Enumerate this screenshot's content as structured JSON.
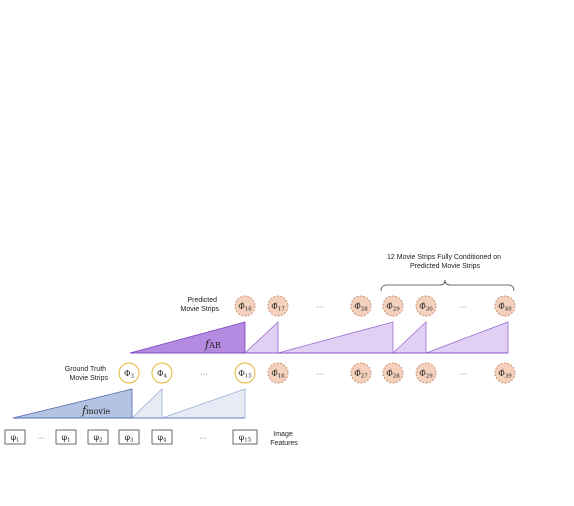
{
  "labels": {
    "predicted": [
      "Predicted",
      "Movie Strips"
    ],
    "ground_truth": [
      "Ground Truth",
      "Movie Strips"
    ],
    "image_features": [
      "Image",
      "Features"
    ],
    "brace_caption": [
      "12 Movie Strips Fully Conditioned on",
      "Predicted Movie Strips"
    ],
    "f_ar": {
      "base": "f",
      "sub": "AR"
    },
    "f_movie": {
      "base": "f",
      "sub": "movie"
    }
  },
  "ellipsis": "···",
  "feature_row": [
    {
      "base": "φ",
      "sub": "1"
    },
    {
      "base": "φ",
      "sub": "1"
    },
    {
      "base": "φ",
      "sub": "2"
    },
    {
      "base": "φ",
      "sub": "3"
    },
    {
      "base": "φ",
      "sub": "4"
    },
    {
      "base": "φ",
      "sub": "15"
    }
  ],
  "ground_truth_row": [
    {
      "base": "Φ",
      "sub": "3"
    },
    {
      "base": "Φ",
      "sub": "4"
    },
    {
      "base": "Φ",
      "sub": "15"
    }
  ],
  "predicted_row_1": [
    {
      "base": "Φ̂",
      "sub": "16"
    },
    {
      "base": "Φ̂",
      "sub": "27"
    },
    {
      "base": "Φ̂",
      "sub": "28"
    },
    {
      "base": "Φ̂",
      "sub": "29"
    },
    {
      "base": "Φ̂",
      "sub": "39"
    }
  ],
  "predicted_row_2": [
    {
      "base": "Φ̂",
      "sub": "16"
    },
    {
      "base": "Φ̂",
      "sub": "17"
    },
    {
      "base": "Φ̂",
      "sub": "28"
    },
    {
      "base": "Φ̂",
      "sub": "29"
    },
    {
      "base": "Φ̂",
      "sub": "30"
    },
    {
      "base": "Φ̂",
      "sub": "40"
    }
  ],
  "colors": {
    "gt_circle_stroke": "#e0b020",
    "pred_circle_fill": "#f3d1bd",
    "pred_circle_stroke": "#c98c6a",
    "movie_dark_fill": "#b5c3e2",
    "movie_dark_stroke": "#4d68b0",
    "movie_light_fill": "#e6ebf6",
    "movie_light_stroke": "#9fb0d9",
    "ar_dark_fill": "#b48be0",
    "ar_dark_stroke": "#7a44c2",
    "ar_light_fill": "#e2d0f4",
    "ar_light_stroke": "#9a6fd0"
  }
}
